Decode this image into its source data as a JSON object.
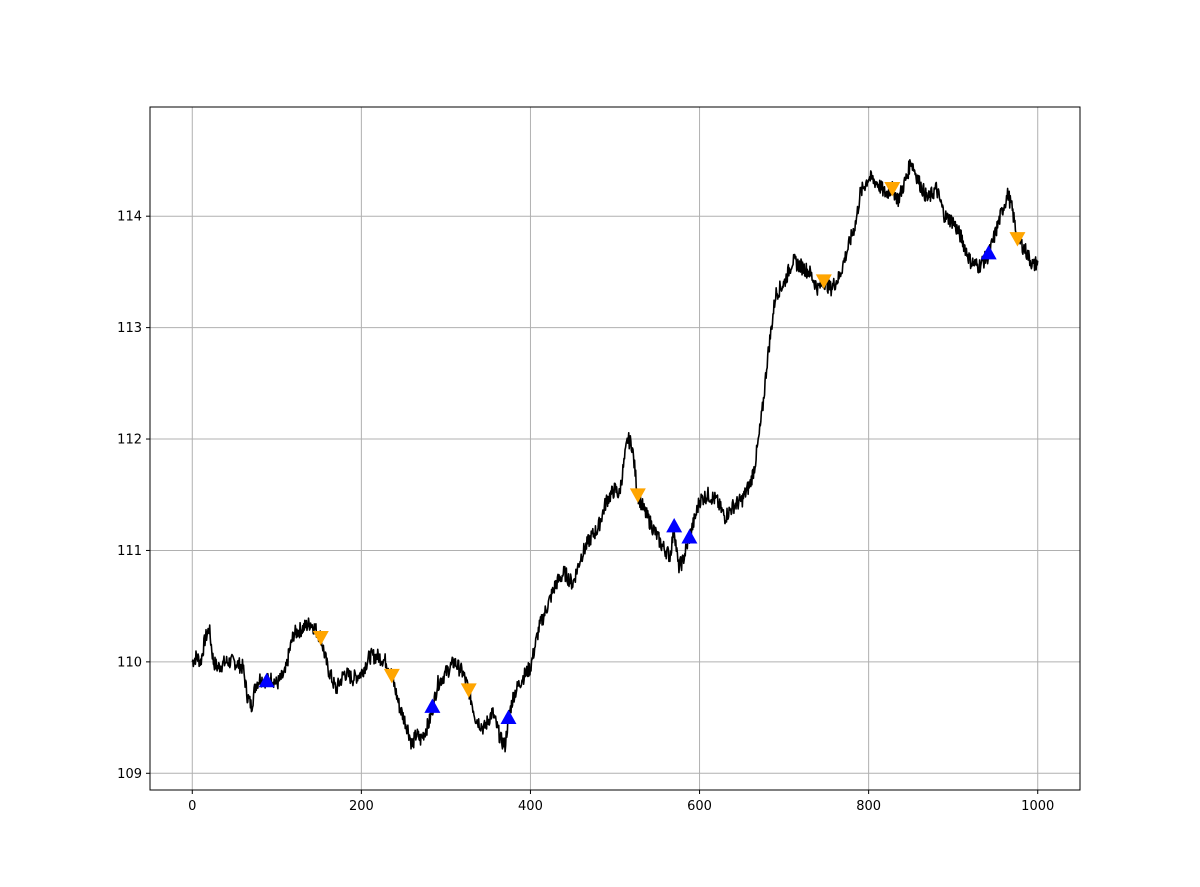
{
  "chart_data": {
    "type": "line",
    "title": "",
    "xlabel": "",
    "ylabel": "",
    "xlim": [
      -50,
      1050
    ],
    "ylim": [
      108.85,
      114.98
    ],
    "grid": true,
    "legend": "none",
    "x_ticks": [
      0,
      200,
      400,
      600,
      800,
      1000
    ],
    "y_ticks": [
      109,
      110,
      111,
      112,
      113,
      114
    ],
    "x_tick_labels": [
      "0",
      "200",
      "400",
      "600",
      "800",
      "1000"
    ],
    "y_tick_labels": [
      "109",
      "110",
      "111",
      "112",
      "113",
      "114"
    ],
    "colors": {
      "line": "#000000",
      "buy_marker": "#0000ff",
      "sell_marker": "#ffa500",
      "grid": "#b0b0b0"
    },
    "series": [
      {
        "type": "line",
        "x": [
          0,
          5,
          10,
          15,
          20,
          25,
          30,
          40,
          50,
          60,
          65,
          70,
          75,
          80,
          88,
          95,
          100,
          110,
          115,
          120,
          130,
          140,
          145,
          152,
          160,
          170,
          180,
          190,
          200,
          210,
          220,
          230,
          236,
          245,
          255,
          260,
          265,
          270,
          280,
          285,
          290,
          300,
          310,
          320,
          327,
          335,
          345,
          355,
          365,
          370,
          374,
          380,
          390,
          400,
          410,
          420,
          430,
          440,
          450,
          460,
          470,
          480,
          490,
          500,
          505,
          510,
          515,
          520,
          527,
          535,
          545,
          555,
          565,
          570,
          575,
          580,
          588,
          595,
          600,
          610,
          620,
          630,
          640,
          650,
          660,
          665,
          670,
          675,
          680,
          685,
          690,
          700,
          710,
          720,
          730,
          740,
          747,
          755,
          765,
          775,
          785,
          790,
          800,
          810,
          820,
          828,
          835,
          845,
          850,
          860,
          870,
          880,
          890,
          900,
          910,
          920,
          930,
          942,
          950,
          960,
          965,
          970,
          976,
          985,
          995,
          1000
        ],
        "y": [
          110.0,
          110.05,
          110.0,
          110.2,
          110.3,
          110.0,
          109.95,
          110.0,
          110.0,
          109.95,
          109.7,
          109.6,
          109.8,
          109.85,
          109.83,
          109.85,
          109.8,
          109.9,
          110.1,
          110.25,
          110.3,
          110.35,
          110.3,
          110.22,
          109.95,
          109.75,
          109.9,
          109.85,
          109.9,
          110.05,
          110.05,
          110.0,
          109.88,
          109.6,
          109.4,
          109.25,
          109.35,
          109.3,
          109.45,
          109.6,
          109.8,
          109.9,
          110.0,
          109.9,
          109.75,
          109.5,
          109.4,
          109.55,
          109.3,
          109.25,
          109.5,
          109.7,
          109.85,
          109.95,
          110.3,
          110.5,
          110.7,
          110.8,
          110.7,
          110.95,
          111.1,
          111.2,
          111.45,
          111.55,
          111.5,
          111.75,
          112.0,
          111.95,
          111.5,
          111.35,
          111.2,
          111.05,
          110.95,
          111.2,
          110.85,
          110.9,
          111.12,
          111.3,
          111.45,
          111.5,
          111.45,
          111.3,
          111.4,
          111.45,
          111.6,
          111.75,
          112.0,
          112.3,
          112.7,
          113.0,
          113.3,
          113.4,
          113.6,
          113.55,
          113.5,
          113.35,
          113.42,
          113.35,
          113.45,
          113.7,
          113.95,
          114.2,
          114.35,
          114.3,
          114.2,
          114.25,
          114.15,
          114.35,
          114.5,
          114.3,
          114.15,
          114.25,
          114.0,
          113.95,
          113.8,
          113.6,
          113.55,
          113.65,
          113.85,
          114.1,
          114.2,
          114.05,
          113.8,
          113.7,
          113.55,
          113.6
        ]
      },
      {
        "type": "scatter",
        "marker": "triangle-up",
        "x": [
          88,
          284,
          374,
          570,
          588,
          942
        ],
        "y": [
          109.83,
          109.6,
          109.5,
          111.22,
          111.12,
          113.67
        ]
      },
      {
        "type": "scatter",
        "marker": "triangle-down",
        "x": [
          152,
          236,
          327,
          527,
          747,
          828,
          976
        ],
        "y": [
          110.22,
          109.88,
          109.75,
          111.5,
          113.42,
          114.25,
          113.8
        ]
      }
    ]
  }
}
